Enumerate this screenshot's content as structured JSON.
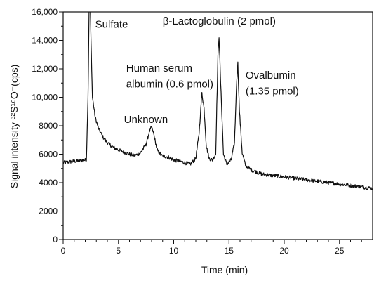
{
  "chart_data": {
    "type": "line",
    "xlabel": "Time (min)",
    "ylabel": "Signal intensity ³²S¹⁶O⁺(cps)",
    "xlim": [
      0,
      28
    ],
    "ylim": [
      0,
      16000
    ],
    "x_ticks": [
      0,
      5,
      10,
      15,
      20,
      25
    ],
    "x_tick_labels": [
      "0",
      "5",
      "10",
      "15",
      "20",
      "25"
    ],
    "y_ticks": [
      0,
      2000,
      4000,
      6000,
      8000,
      10000,
      12000,
      14000,
      16000
    ],
    "y_tick_labels": [
      "0",
      "2000",
      "4000",
      "6000",
      "8000",
      "10,000",
      "12,000",
      "14,000",
      "16,000"
    ],
    "grid": false,
    "series": [
      {
        "x": [
          0,
          1,
          2.1,
          2.25,
          2.35,
          2.45,
          2.55,
          2.65,
          2.9,
          3.2,
          3.6,
          4.0,
          4.5,
          5.0,
          5.5,
          6.0,
          6.5,
          7.0,
          7.5,
          7.8,
          8.0,
          8.2,
          8.5,
          8.9,
          9.5,
          10.0,
          10.5,
          11.0,
          11.5,
          12.0,
          12.3,
          12.55,
          12.75,
          12.95,
          13.2,
          13.5,
          13.8,
          14.0,
          14.1,
          14.25,
          14.5,
          14.8,
          15.2,
          15.5,
          15.7,
          15.8,
          15.95,
          16.2,
          16.5,
          17.0,
          18.0,
          20.0,
          22.0,
          24.0,
          26.0,
          28.0
        ],
        "y": [
          5400,
          5500,
          5600,
          10000,
          16500,
          16500,
          13000,
          10000,
          8600,
          7800,
          7200,
          6800,
          6500,
          6300,
          6150,
          6000,
          5900,
          6100,
          6700,
          7600,
          7900,
          7400,
          6300,
          5900,
          5800,
          5600,
          5500,
          5400,
          5300,
          5700,
          7500,
          10300,
          9200,
          6600,
          5700,
          5600,
          6000,
          12800,
          14300,
          11000,
          6000,
          5300,
          5600,
          6800,
          11200,
          12400,
          9000,
          6100,
          5200,
          4900,
          4600,
          4400,
          4200,
          4000,
          3800,
          3600
        ]
      }
    ],
    "annotations": [
      {
        "text": "Sulfate",
        "x": 2.9,
        "y": 14900
      },
      {
        "text": "Unknown",
        "x": 5.5,
        "y": 8200
      },
      {
        "text": "Human serum",
        "x": 5.7,
        "y": 11800
      },
      {
        "text": "albumin (0.6 pmol)",
        "x": 5.7,
        "y": 10700
      },
      {
        "text": "β-Lactoglobulin (2 pmol)",
        "x": 9.0,
        "y": 15100
      },
      {
        "text": "Ovalbumin",
        "x": 16.5,
        "y": 11300
      },
      {
        "text": "(1.35 pmol)",
        "x": 16.5,
        "y": 10200
      }
    ]
  }
}
